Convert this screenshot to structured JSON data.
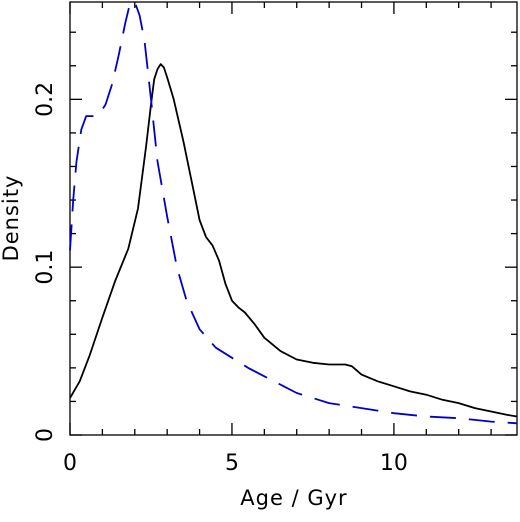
{
  "chart_data": {
    "type": "line",
    "title": "",
    "xlabel": "Age / Gyr",
    "ylabel": "Density",
    "xlim": [
      0,
      13.8
    ],
    "ylim": [
      0,
      0.258
    ],
    "x_ticks": [
      0,
      5,
      10
    ],
    "y_ticks": [
      0,
      0.1,
      0.2
    ],
    "x_tick_labels": [
      "0",
      "5",
      "10"
    ],
    "y_tick_labels": [
      "0",
      "0.1",
      "0.2"
    ],
    "grid": false,
    "legend": "none",
    "series": [
      {
        "style": "solid",
        "color": "#000000",
        "x": [
          0,
          0.3,
          0.6,
          1.0,
          1.4,
          1.8,
          2.1,
          2.35,
          2.5,
          2.6,
          2.7,
          2.8,
          2.9,
          3.0,
          3.2,
          3.5,
          3.8,
          4.0,
          4.2,
          4.4,
          4.6,
          4.8,
          5.0,
          5.2,
          5.4,
          5.7,
          6.0,
          6.5,
          7.0,
          7.5,
          8.0,
          8.5,
          8.7,
          9.0,
          9.5,
          10.0,
          10.5,
          11.0,
          11.5,
          12.0,
          12.5,
          13.0,
          13.5,
          13.8
        ],
        "y": [
          0.022,
          0.032,
          0.047,
          0.07,
          0.092,
          0.111,
          0.135,
          0.172,
          0.197,
          0.212,
          0.218,
          0.221,
          0.219,
          0.213,
          0.2,
          0.175,
          0.147,
          0.128,
          0.118,
          0.113,
          0.104,
          0.09,
          0.08,
          0.076,
          0.073,
          0.066,
          0.058,
          0.05,
          0.045,
          0.043,
          0.042,
          0.042,
          0.041,
          0.036,
          0.032,
          0.029,
          0.026,
          0.024,
          0.021,
          0.019,
          0.016,
          0.014,
          0.012,
          0.011
        ]
      },
      {
        "style": "dashed",
        "color": "#0000cc",
        "x": [
          0,
          0.1,
          0.2,
          0.35,
          0.5,
          0.7,
          0.9,
          1.1,
          1.3,
          1.5,
          1.7,
          1.85,
          2.0,
          2.15,
          2.3,
          2.5,
          2.7,
          3.0,
          3.3,
          3.6,
          4.0,
          4.5,
          5.0,
          5.5,
          6.0,
          7.0,
          8.0,
          9.0,
          10.0,
          11.0,
          12.0,
          13.0,
          13.8
        ],
        "y": [
          0.11,
          0.14,
          0.163,
          0.182,
          0.19,
          0.19,
          0.191,
          0.197,
          0.209,
          0.226,
          0.245,
          0.257,
          0.258,
          0.25,
          0.235,
          0.2,
          0.163,
          0.13,
          0.1,
          0.08,
          0.063,
          0.052,
          0.046,
          0.04,
          0.035,
          0.025,
          0.019,
          0.016,
          0.013,
          0.011,
          0.01,
          0.008,
          0.007
        ]
      }
    ]
  }
}
